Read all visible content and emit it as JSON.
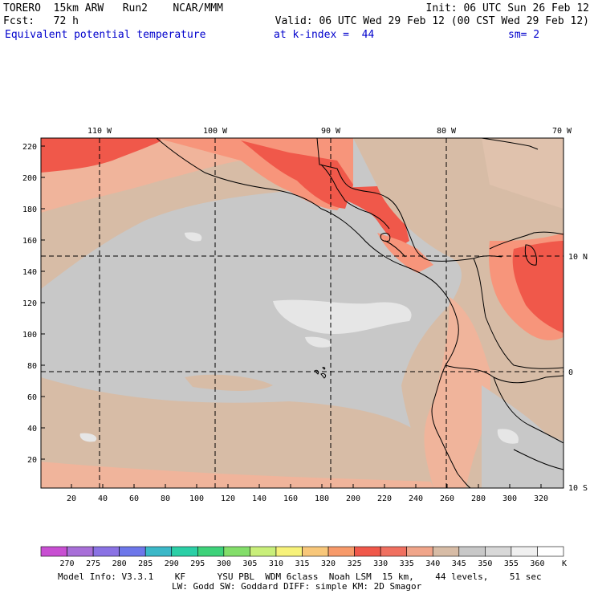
{
  "header": {
    "line1_left": "TORERO  15km ARW   Run2    NCAR/MMM",
    "line1_right": "Init: 06 UTC Sun 26 Feb 12",
    "line2_left": "Fcst:   72 h",
    "line2_right": "Valid: 06 UTC Wed 29 Feb 12 (00 CST Wed 29 Feb 12)",
    "line3_field": "Equivalent potential temperature",
    "line3_level": "at k-index =  44",
    "line3_smooth": "sm= 2"
  },
  "map": {
    "top_lon_labels": [
      "110 W",
      "100 W",
      "90 W",
      "80 W",
      "70 W"
    ],
    "right_lat_labels": [
      "10 N",
      "0",
      "10 S"
    ],
    "left_y_ticks": [
      "220",
      "200",
      "180",
      "160",
      "140",
      "120",
      "100",
      "80",
      "60",
      "40",
      "20"
    ],
    "bottom_x_ticks": [
      "20",
      "40",
      "60",
      "80",
      "100",
      "120",
      "140",
      "160",
      "180",
      "200",
      "220",
      "240",
      "260",
      "280",
      "300",
      "320"
    ],
    "colors": {
      "gray": "#c8c8c8",
      "lightgray": "#e6e6e6",
      "tan": "#d7bca6",
      "peach": "#f0b49b",
      "salmon": "#f7957b",
      "red": "#f0584a"
    }
  },
  "colorbar": {
    "unit": "K",
    "labels": [
      "270",
      "275",
      "280",
      "285",
      "290",
      "295",
      "300",
      "305",
      "310",
      "315",
      "320",
      "325",
      "330",
      "335",
      "340",
      "345",
      "350",
      "355",
      "360"
    ],
    "colors": [
      "#c84fd2",
      "#a86fd8",
      "#8a72e4",
      "#6d77ea",
      "#3bb8c8",
      "#2bcfa6",
      "#3ed27a",
      "#83de6a",
      "#c9ef7a",
      "#f7f27a",
      "#f8c77a",
      "#f79a6a",
      "#f0584a",
      "#f07060",
      "#f0a58a",
      "#d7bca6",
      "#c8c8c8",
      "#d8d8d8",
      "#f0f0f0"
    ]
  },
  "footer": {
    "line1": "Model Info: V3.3.1    KF      YSU PBL  WDM 6class  Noah LSM  15 km,    44 levels,    51 sec",
    "line2": "LW: Godd SW: Goddard DIFF: simple KM: 2D Smagor"
  }
}
